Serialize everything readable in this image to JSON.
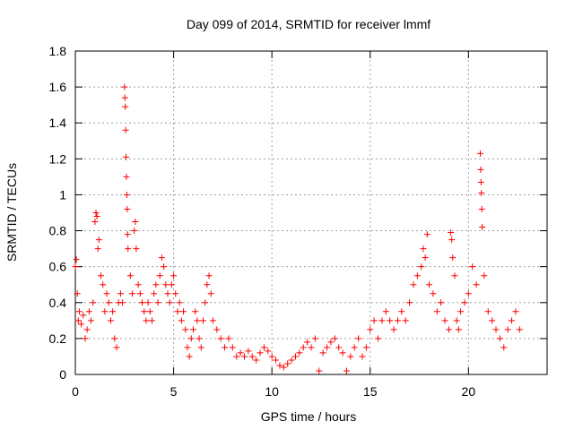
{
  "chart_data": {
    "type": "scatter",
    "title": "Day 099 of 2014, SRMTID for receiver lmmf",
    "xlabel": "GPS time / hours",
    "ylabel": "SRMTID / TECUs",
    "xlim": [
      0,
      24
    ],
    "ylim": [
      0,
      1.8
    ],
    "xticks": [
      0,
      5,
      10,
      15,
      20
    ],
    "xtick_labels": [
      "0",
      "5",
      "10",
      "15",
      "20"
    ],
    "yticks": [
      0,
      0.2,
      0.4,
      0.6,
      0.8,
      1.0,
      1.2,
      1.4,
      1.6,
      1.8
    ],
    "ytick_labels": [
      "0",
      "0.2",
      "0.4",
      "0.6",
      "0.8",
      "1",
      "1.2",
      "1.4",
      "1.6",
      "1.8"
    ],
    "grid": true,
    "marker": "+",
    "color": "#ff0000",
    "series": [
      {
        "name": "SRMTID",
        "points": [
          [
            0.0,
            0.6
          ],
          [
            0.05,
            0.64
          ],
          [
            0.1,
            0.45
          ],
          [
            0.15,
            0.3
          ],
          [
            0.2,
            0.35
          ],
          [
            0.3,
            0.28
          ],
          [
            0.4,
            0.33
          ],
          [
            0.5,
            0.2
          ],
          [
            0.6,
            0.25
          ],
          [
            0.7,
            0.35
          ],
          [
            0.8,
            0.3
          ],
          [
            0.9,
            0.4
          ],
          [
            1.0,
            0.85
          ],
          [
            1.05,
            0.9
          ],
          [
            1.1,
            0.88
          ],
          [
            1.15,
            0.7
          ],
          [
            1.2,
            0.75
          ],
          [
            1.3,
            0.55
          ],
          [
            1.4,
            0.5
          ],
          [
            1.5,
            0.35
          ],
          [
            1.6,
            0.45
          ],
          [
            1.7,
            0.4
          ],
          [
            1.8,
            0.3
          ],
          [
            1.9,
            0.35
          ],
          [
            2.0,
            0.2
          ],
          [
            2.1,
            0.15
          ],
          [
            2.2,
            0.4
          ],
          [
            2.3,
            0.45
          ],
          [
            2.4,
            0.4
          ],
          [
            2.5,
            1.6
          ],
          [
            2.52,
            1.54
          ],
          [
            2.54,
            1.49
          ],
          [
            2.56,
            1.36
          ],
          [
            2.58,
            1.21
          ],
          [
            2.6,
            1.1
          ],
          [
            2.62,
            1.0
          ],
          [
            2.64,
            0.92
          ],
          [
            2.66,
            0.78
          ],
          [
            2.68,
            0.7
          ],
          [
            2.8,
            0.55
          ],
          [
            2.9,
            0.45
          ],
          [
            3.0,
            0.8
          ],
          [
            3.05,
            0.85
          ],
          [
            3.1,
            0.7
          ],
          [
            3.2,
            0.5
          ],
          [
            3.3,
            0.45
          ],
          [
            3.4,
            0.4
          ],
          [
            3.5,
            0.35
          ],
          [
            3.6,
            0.3
          ],
          [
            3.7,
            0.4
          ],
          [
            3.8,
            0.35
          ],
          [
            3.9,
            0.3
          ],
          [
            4.0,
            0.45
          ],
          [
            4.1,
            0.5
          ],
          [
            4.2,
            0.4
          ],
          [
            4.3,
            0.55
          ],
          [
            4.4,
            0.65
          ],
          [
            4.5,
            0.6
          ],
          [
            4.6,
            0.5
          ],
          [
            4.7,
            0.45
          ],
          [
            4.8,
            0.4
          ],
          [
            4.9,
            0.5
          ],
          [
            5.0,
            0.55
          ],
          [
            5.1,
            0.45
          ],
          [
            5.2,
            0.35
          ],
          [
            5.3,
            0.4
          ],
          [
            5.4,
            0.3
          ],
          [
            5.5,
            0.35
          ],
          [
            5.6,
            0.25
          ],
          [
            5.7,
            0.15
          ],
          [
            5.8,
            0.1
          ],
          [
            5.9,
            0.2
          ],
          [
            6.0,
            0.25
          ],
          [
            6.1,
            0.35
          ],
          [
            6.2,
            0.3
          ],
          [
            6.3,
            0.2
          ],
          [
            6.4,
            0.15
          ],
          [
            6.5,
            0.3
          ],
          [
            6.6,
            0.4
          ],
          [
            6.7,
            0.5
          ],
          [
            6.8,
            0.55
          ],
          [
            6.9,
            0.45
          ],
          [
            7.0,
            0.3
          ],
          [
            7.2,
            0.25
          ],
          [
            7.4,
            0.2
          ],
          [
            7.6,
            0.15
          ],
          [
            7.8,
            0.2
          ],
          [
            8.0,
            0.15
          ],
          [
            8.2,
            0.1
          ],
          [
            8.4,
            0.12
          ],
          [
            8.6,
            0.1
          ],
          [
            8.8,
            0.13
          ],
          [
            9.0,
            0.1
          ],
          [
            9.2,
            0.08
          ],
          [
            9.4,
            0.12
          ],
          [
            9.6,
            0.15
          ],
          [
            9.8,
            0.13
          ],
          [
            10.0,
            0.1
          ],
          [
            10.2,
            0.08
          ],
          [
            10.4,
            0.05
          ],
          [
            10.6,
            0.04
          ],
          [
            10.8,
            0.06
          ],
          [
            11.0,
            0.08
          ],
          [
            11.2,
            0.1
          ],
          [
            11.4,
            0.12
          ],
          [
            11.6,
            0.15
          ],
          [
            11.8,
            0.18
          ],
          [
            12.0,
            0.15
          ],
          [
            12.2,
            0.2
          ],
          [
            12.4,
            0.02
          ],
          [
            12.6,
            0.12
          ],
          [
            12.8,
            0.15
          ],
          [
            13.0,
            0.18
          ],
          [
            13.2,
            0.2
          ],
          [
            13.4,
            0.15
          ],
          [
            13.6,
            0.12
          ],
          [
            13.8,
            0.02
          ],
          [
            14.0,
            0.1
          ],
          [
            14.2,
            0.15
          ],
          [
            14.4,
            0.2
          ],
          [
            14.6,
            0.1
          ],
          [
            14.8,
            0.15
          ],
          [
            15.0,
            0.25
          ],
          [
            15.2,
            0.3
          ],
          [
            15.4,
            0.2
          ],
          [
            15.6,
            0.3
          ],
          [
            15.8,
            0.35
          ],
          [
            16.0,
            0.3
          ],
          [
            16.2,
            0.25
          ],
          [
            16.4,
            0.3
          ],
          [
            16.6,
            0.35
          ],
          [
            16.8,
            0.3
          ],
          [
            17.0,
            0.4
          ],
          [
            17.2,
            0.5
          ],
          [
            17.4,
            0.55
          ],
          [
            17.6,
            0.6
          ],
          [
            17.7,
            0.7
          ],
          [
            17.8,
            0.65
          ],
          [
            17.9,
            0.78
          ],
          [
            18.0,
            0.5
          ],
          [
            18.2,
            0.45
          ],
          [
            18.4,
            0.35
          ],
          [
            18.6,
            0.4
          ],
          [
            18.8,
            0.3
          ],
          [
            19.0,
            0.25
          ],
          [
            19.1,
            0.79
          ],
          [
            19.15,
            0.75
          ],
          [
            19.2,
            0.65
          ],
          [
            19.3,
            0.55
          ],
          [
            19.4,
            0.3
          ],
          [
            19.5,
            0.25
          ],
          [
            19.6,
            0.35
          ],
          [
            19.8,
            0.4
          ],
          [
            20.0,
            0.45
          ],
          [
            20.2,
            0.6
          ],
          [
            20.4,
            0.5
          ],
          [
            20.6,
            1.23
          ],
          [
            20.62,
            1.14
          ],
          [
            20.64,
            1.07
          ],
          [
            20.66,
            1.01
          ],
          [
            20.68,
            0.92
          ],
          [
            20.7,
            0.82
          ],
          [
            20.8,
            0.55
          ],
          [
            21.0,
            0.35
          ],
          [
            21.2,
            0.3
          ],
          [
            21.4,
            0.25
          ],
          [
            21.6,
            0.2
          ],
          [
            21.8,
            0.15
          ],
          [
            22.0,
            0.25
          ],
          [
            22.2,
            0.3
          ],
          [
            22.4,
            0.35
          ],
          [
            22.6,
            0.25
          ]
        ]
      }
    ]
  }
}
